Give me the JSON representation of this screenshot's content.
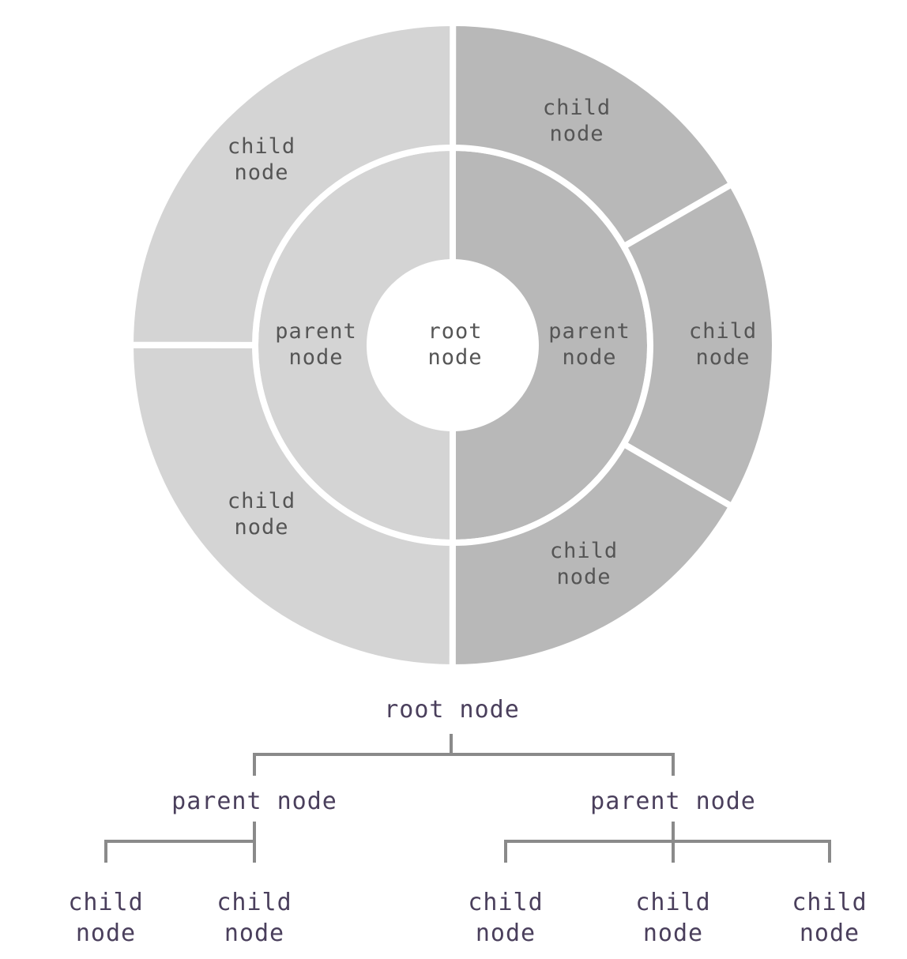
{
  "colors": {
    "left_branch": "#d4d4d4",
    "right_branch": "#b8b8b8",
    "separator": "#ffffff",
    "sunburst_text": "#555555",
    "tree_text": "#4a3f5c",
    "tree_lines": "#8a8a8a"
  },
  "sunburst": {
    "root": {
      "line1": "root",
      "line2": "node"
    },
    "parents": [
      {
        "line1": "parent",
        "line2": "node",
        "branch": "left",
        "share": 0.5
      },
      {
        "line1": "parent",
        "line2": "node",
        "branch": "right",
        "share": 0.5
      }
    ],
    "children": [
      {
        "line1": "child",
        "line2": "node",
        "branch": "left",
        "share": 0.25
      },
      {
        "line1": "child",
        "line2": "node",
        "branch": "left",
        "share": 0.25
      },
      {
        "line1": "child",
        "line2": "node",
        "branch": "right",
        "share": 0.1667
      },
      {
        "line1": "child",
        "line2": "node",
        "branch": "right",
        "share": 0.1667
      },
      {
        "line1": "child",
        "line2": "node",
        "branch": "right",
        "share": 0.1667
      }
    ]
  },
  "tree": {
    "root": "root node",
    "parents": [
      {
        "label": "parent node",
        "children": [
          {
            "line1": "child",
            "line2": "node"
          },
          {
            "line1": "child",
            "line2": "node"
          }
        ]
      },
      {
        "label": "parent node",
        "children": [
          {
            "line1": "child",
            "line2": "node"
          },
          {
            "line1": "child",
            "line2": "node"
          },
          {
            "line1": "child",
            "line2": "node"
          }
        ]
      }
    ]
  }
}
